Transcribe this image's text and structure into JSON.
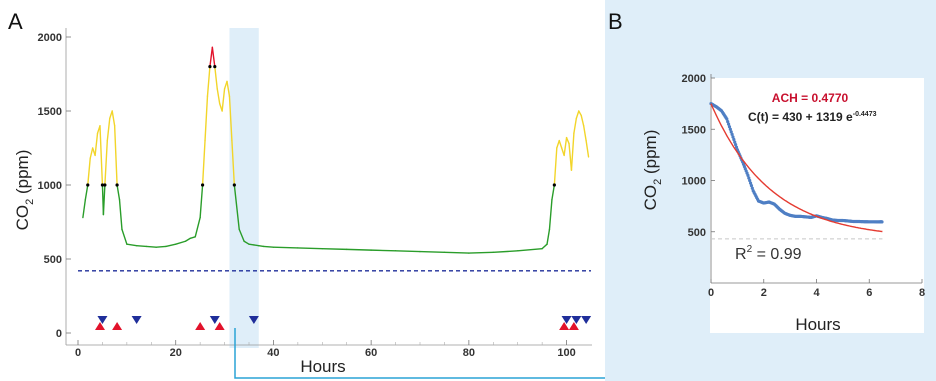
{
  "figure": {
    "panel_a_letter": "A",
    "panel_b_letter": "B"
  },
  "colors": {
    "green": "#2a9d2a",
    "yellow": "#f2d52a",
    "red": "#e2122b",
    "baseline": "#1f2e9a",
    "highlight": "#dfeef9",
    "connector": "#2aa3d6",
    "fit": "#e53b31",
    "data_points": "#4f7fc4",
    "ach_text": "#c8102e"
  },
  "chart_data": [
    {
      "panel": "A",
      "type": "line",
      "xlabel": "Hours",
      "ylabel": "CO2 (ppm)",
      "xlim": [
        0,
        105
      ],
      "ylim": [
        0,
        2000
      ],
      "x_ticks": [
        "0",
        "20",
        "40",
        "60",
        "80",
        "100"
      ],
      "y_ticks": [
        "0",
        "500",
        "1000",
        "1500",
        "2000"
      ],
      "threshold_ppm": 1000,
      "threshold_high_ppm": 1800,
      "baseline_ppm": 420,
      "highlight_window_hours": [
        31,
        37
      ],
      "series": [
        {
          "x": [
            1,
            1.5,
            2,
            2.5,
            3,
            3.5,
            4,
            4.5,
            5,
            5.2,
            5.5,
            6,
            6.5,
            7,
            7.5,
            8,
            8.5,
            9,
            10,
            12,
            14,
            16,
            18,
            20,
            22,
            23,
            24,
            25,
            25.5,
            26,
            26.5,
            27,
            27.5,
            28,
            28.5,
            29,
            29.5,
            30,
            30.5,
            31,
            31.5,
            32,
            33,
            34,
            35,
            36,
            37,
            38,
            40,
            45,
            50,
            55,
            60,
            65,
            70,
            75,
            80,
            85,
            90,
            95,
            96,
            96.5,
            97,
            97.5,
            98,
            98.5,
            99,
            99.5,
            100,
            100.5,
            101,
            101.5,
            102,
            102.5,
            103,
            103.5,
            104,
            104.5
          ],
          "y": [
            780,
            900,
            1000,
            1180,
            1250,
            1200,
            1350,
            1400,
            1000,
            800,
            1000,
            1300,
            1450,
            1500,
            1400,
            1000,
            900,
            700,
            600,
            590,
            585,
            580,
            585,
            600,
            620,
            640,
            650,
            780,
            1000,
            1300,
            1600,
            1800,
            1930,
            1800,
            1650,
            1550,
            1500,
            1650,
            1700,
            1600,
            1300,
            1000,
            700,
            620,
            600,
            595,
            590,
            585,
            580,
            575,
            570,
            565,
            560,
            555,
            550,
            545,
            540,
            545,
            555,
            570,
            600,
            700,
            900,
            1000,
            1250,
            1300,
            1250,
            1200,
            1320,
            1280,
            1100,
            1350,
            1450,
            1500,
            1470,
            1400,
            1300,
            1190
          ]
        }
      ],
      "markers_up": [
        4.5,
        8,
        25,
        29
      ],
      "markers_down": [
        5,
        12,
        28,
        36,
        100,
        102,
        104
      ],
      "markers_up_right": [
        99.5,
        101.5
      ]
    },
    {
      "panel": "B",
      "type": "scatter",
      "xlabel": "Hours",
      "ylabel": "CO2 (ppm)",
      "xlim": [
        0,
        8
      ],
      "ylim": [
        0,
        2000
      ],
      "x_ticks": [
        "0",
        "2",
        "4",
        "6",
        "8"
      ],
      "y_ticks": [
        "500",
        "1000",
        "1500",
        "2000"
      ],
      "ach_label": "ACH = 0.4770",
      "equation_main": "C(t) = 430 + 1319 e",
      "equation_exponent": "-0.4473",
      "r2_label": "R",
      "r2_sup": "2",
      "r2_value": " = 0.99",
      "asymptote_ppm": 430,
      "fit": {
        "a": 430,
        "b": 1319,
        "k": 0.4473
      },
      "points_x": [
        0,
        0.2,
        0.4,
        0.6,
        0.8,
        1.0,
        1.2,
        1.4,
        1.6,
        1.8,
        2.0,
        2.2,
        2.4,
        2.6,
        2.8,
        3.0,
        3.2,
        3.4,
        3.6,
        3.8,
        4.0,
        4.2,
        4.4,
        4.6,
        4.8,
        5.0,
        5.2,
        5.4,
        5.6,
        5.8,
        6.0,
        6.2,
        6.4,
        6.5
      ],
      "points_y": [
        1750,
        1720,
        1680,
        1600,
        1450,
        1300,
        1180,
        1050,
        900,
        800,
        780,
        790,
        770,
        720,
        680,
        660,
        650,
        650,
        645,
        640,
        655,
        640,
        630,
        615,
        610,
        610,
        605,
        600,
        600,
        598,
        597,
        597,
        596,
        596
      ]
    }
  ]
}
